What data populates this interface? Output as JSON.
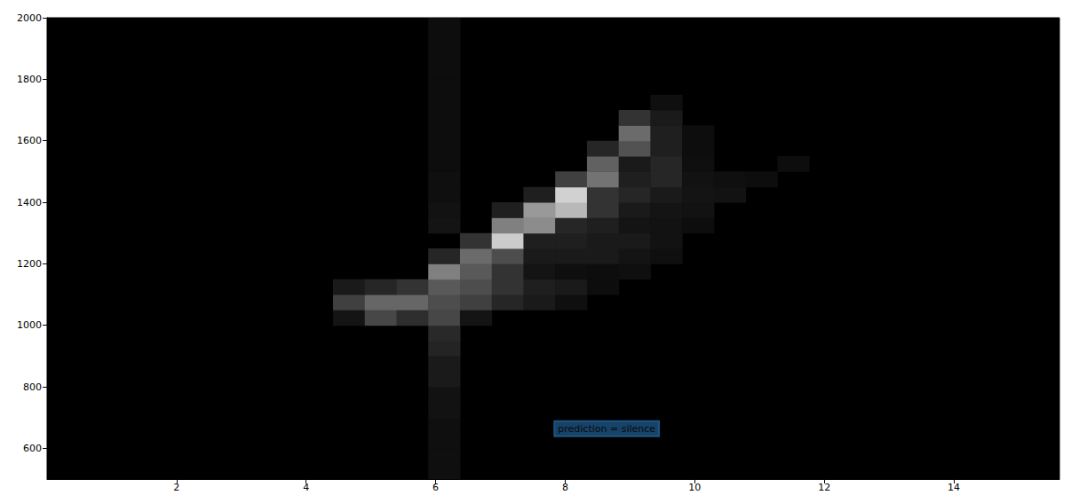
{
  "chart_data": {
    "type": "heatmap",
    "xlim": [
      0,
      15.63
    ],
    "xticks": [
      2,
      4,
      6,
      8,
      10,
      12,
      14
    ],
    "ylim": [
      500,
      2000
    ],
    "yticks": [
      600,
      800,
      1000,
      1200,
      1400,
      1600,
      1800,
      2000
    ],
    "cell_width": 0.49,
    "cell_height": 50,
    "value_range": [
      0,
      1
    ],
    "cells": [
      [
        6.13,
        525,
        0.06
      ],
      [
        6.13,
        575,
        0.06
      ],
      [
        6.13,
        625,
        0.06
      ],
      [
        6.13,
        675,
        0.06
      ],
      [
        6.13,
        725,
        0.07
      ],
      [
        6.13,
        775,
        0.07
      ],
      [
        6.13,
        825,
        0.1
      ],
      [
        6.13,
        875,
        0.1
      ],
      [
        6.13,
        925,
        0.14
      ],
      [
        6.13,
        975,
        0.16
      ],
      [
        6.13,
        1325,
        0.08
      ],
      [
        6.13,
        1375,
        0.07
      ],
      [
        6.13,
        1425,
        0.06
      ],
      [
        6.13,
        1475,
        0.06
      ],
      [
        6.13,
        1525,
        0.05
      ],
      [
        6.13,
        1575,
        0.05
      ],
      [
        6.13,
        1625,
        0.05
      ],
      [
        6.13,
        1675,
        0.05
      ],
      [
        6.13,
        1725,
        0.05
      ],
      [
        6.13,
        1775,
        0.05
      ],
      [
        6.13,
        1825,
        0.05
      ],
      [
        6.13,
        1875,
        0.05
      ],
      [
        6.13,
        1925,
        0.05
      ],
      [
        6.13,
        1975,
        0.05
      ],
      [
        4.66,
        1025,
        0.08
      ],
      [
        5.15,
        1025,
        0.28
      ],
      [
        5.64,
        1025,
        0.18
      ],
      [
        6.13,
        1025,
        0.28
      ],
      [
        6.62,
        1025,
        0.08
      ],
      [
        4.66,
        1075,
        0.25
      ],
      [
        5.15,
        1075,
        0.4
      ],
      [
        5.64,
        1075,
        0.4
      ],
      [
        6.13,
        1075,
        0.3
      ],
      [
        6.62,
        1075,
        0.25
      ],
      [
        7.11,
        1075,
        0.15
      ],
      [
        7.6,
        1075,
        0.1
      ],
      [
        8.09,
        1075,
        0.06
      ],
      [
        4.66,
        1125,
        0.1
      ],
      [
        5.15,
        1125,
        0.15
      ],
      [
        5.64,
        1125,
        0.2
      ],
      [
        6.13,
        1125,
        0.35
      ],
      [
        6.62,
        1125,
        0.3
      ],
      [
        7.11,
        1125,
        0.2
      ],
      [
        7.6,
        1125,
        0.12
      ],
      [
        8.09,
        1125,
        0.1
      ],
      [
        8.58,
        1125,
        0.05
      ],
      [
        6.13,
        1175,
        0.5
      ],
      [
        6.62,
        1175,
        0.35
      ],
      [
        7.11,
        1175,
        0.2
      ],
      [
        7.6,
        1175,
        0.08
      ],
      [
        8.09,
        1175,
        0.06
      ],
      [
        8.58,
        1175,
        0.05
      ],
      [
        9.07,
        1175,
        0.06
      ],
      [
        6.13,
        1225,
        0.15
      ],
      [
        6.62,
        1225,
        0.42
      ],
      [
        7.11,
        1225,
        0.3
      ],
      [
        7.6,
        1225,
        0.1
      ],
      [
        8.09,
        1225,
        0.1
      ],
      [
        8.58,
        1225,
        0.1
      ],
      [
        9.07,
        1225,
        0.08
      ],
      [
        9.56,
        1225,
        0.06
      ],
      [
        6.62,
        1275,
        0.2
      ],
      [
        7.11,
        1275,
        0.8
      ],
      [
        7.6,
        1275,
        0.12
      ],
      [
        8.09,
        1275,
        0.12
      ],
      [
        8.58,
        1275,
        0.1
      ],
      [
        9.07,
        1275,
        0.1
      ],
      [
        9.56,
        1275,
        0.07
      ],
      [
        7.11,
        1325,
        0.5
      ],
      [
        7.6,
        1325,
        0.55
      ],
      [
        8.09,
        1325,
        0.15
      ],
      [
        8.58,
        1325,
        0.12
      ],
      [
        9.07,
        1325,
        0.08
      ],
      [
        9.56,
        1325,
        0.07
      ],
      [
        10.05,
        1325,
        0.05
      ],
      [
        7.11,
        1375,
        0.12
      ],
      [
        7.6,
        1375,
        0.6
      ],
      [
        8.09,
        1375,
        0.72
      ],
      [
        8.58,
        1375,
        0.2
      ],
      [
        9.07,
        1375,
        0.1
      ],
      [
        9.56,
        1375,
        0.08
      ],
      [
        10.05,
        1375,
        0.07
      ],
      [
        7.6,
        1425,
        0.12
      ],
      [
        8.09,
        1425,
        0.82
      ],
      [
        8.58,
        1425,
        0.2
      ],
      [
        9.07,
        1425,
        0.15
      ],
      [
        9.56,
        1425,
        0.1
      ],
      [
        10.05,
        1425,
        0.08
      ],
      [
        10.54,
        1425,
        0.07
      ],
      [
        8.09,
        1475,
        0.25
      ],
      [
        8.58,
        1475,
        0.45
      ],
      [
        9.07,
        1475,
        0.12
      ],
      [
        9.56,
        1475,
        0.15
      ],
      [
        10.05,
        1475,
        0.07
      ],
      [
        10.54,
        1475,
        0.06
      ],
      [
        11.03,
        1475,
        0.05
      ],
      [
        8.58,
        1525,
        0.38
      ],
      [
        9.07,
        1525,
        0.1
      ],
      [
        9.56,
        1525,
        0.15
      ],
      [
        10.05,
        1525,
        0.06
      ],
      [
        11.52,
        1525,
        0.05
      ],
      [
        8.58,
        1575,
        0.15
      ],
      [
        9.07,
        1575,
        0.32
      ],
      [
        9.56,
        1575,
        0.12
      ],
      [
        10.05,
        1575,
        0.05
      ],
      [
        9.07,
        1625,
        0.42
      ],
      [
        9.56,
        1625,
        0.12
      ],
      [
        10.05,
        1625,
        0.05
      ],
      [
        9.07,
        1675,
        0.2
      ],
      [
        9.56,
        1675,
        0.1
      ],
      [
        9.56,
        1725,
        0.06
      ]
    ],
    "annotations": [
      {
        "text": "prediction = silence",
        "x": 8.64,
        "y": 664
      }
    ]
  }
}
